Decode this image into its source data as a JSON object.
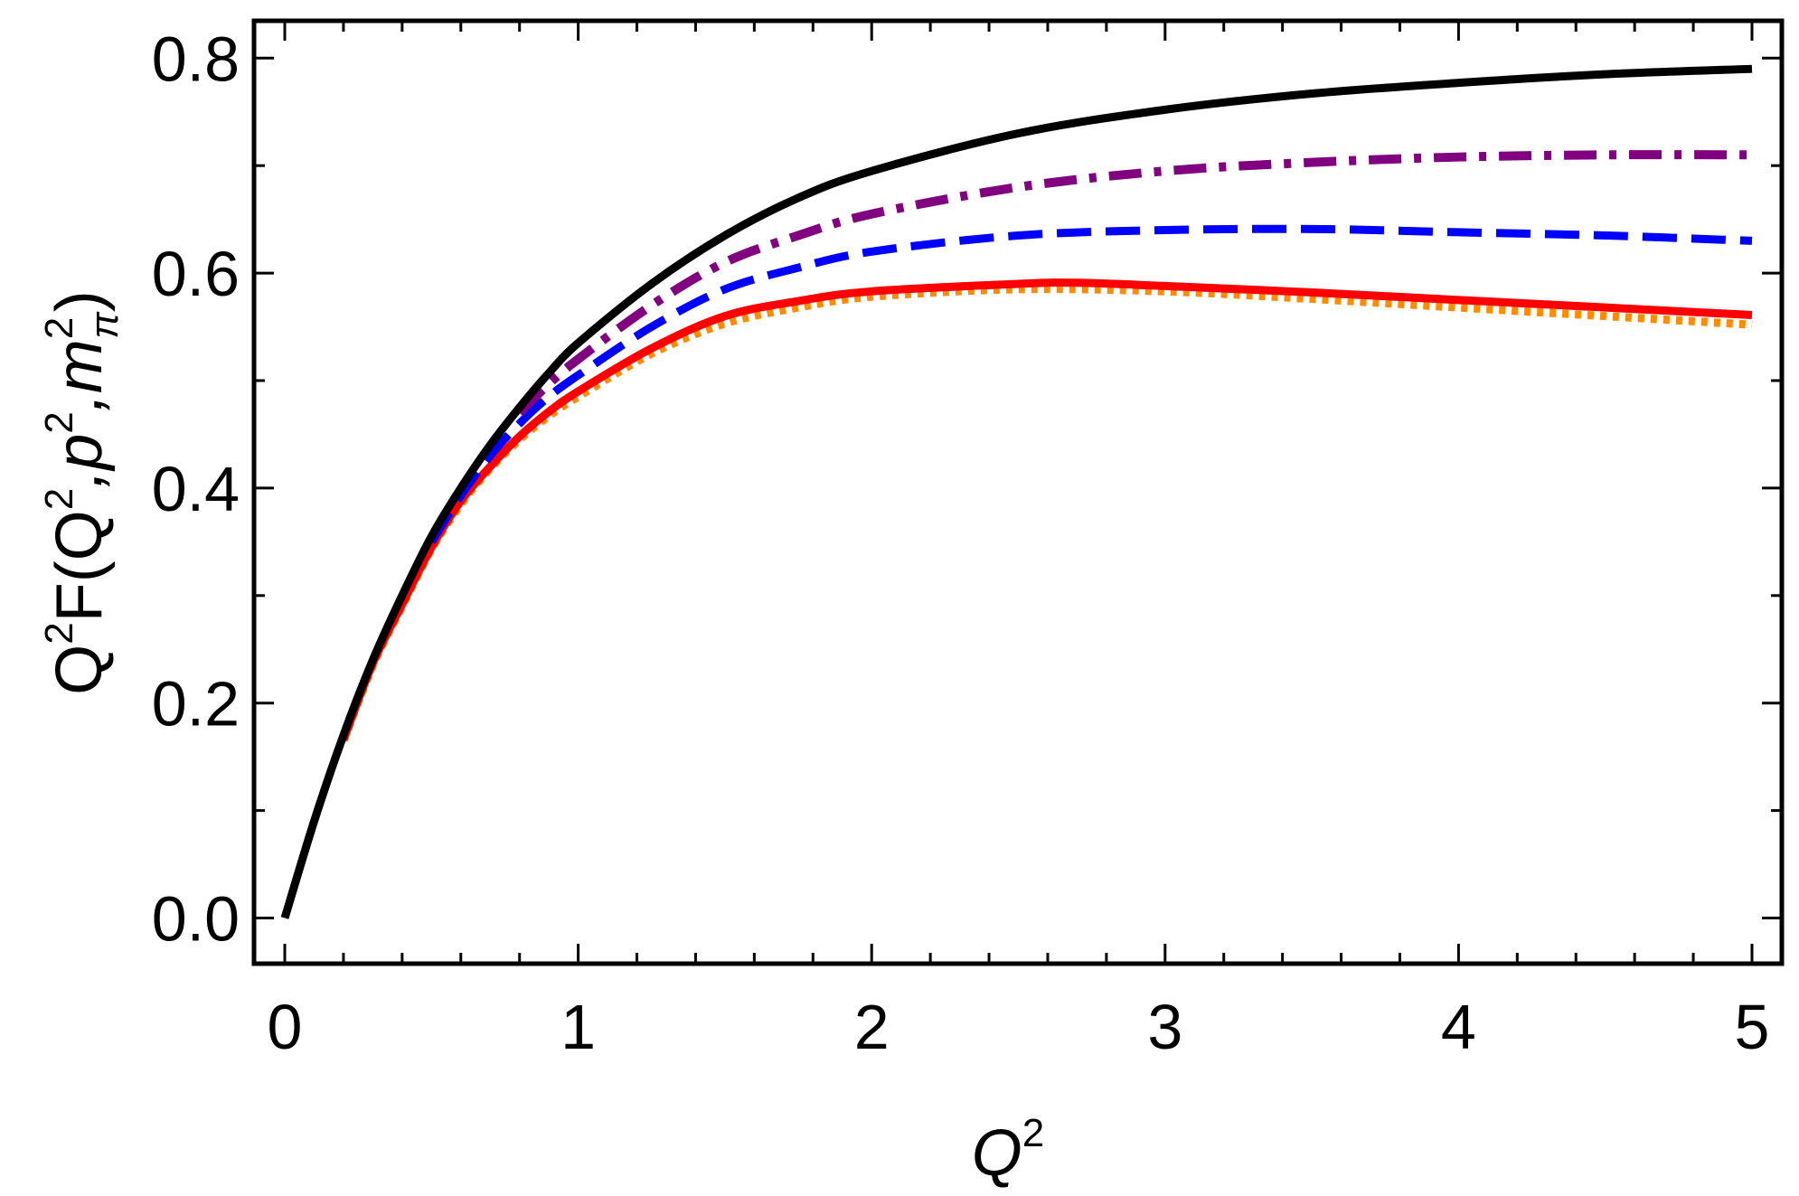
{
  "chart_data": {
    "type": "line",
    "title": "",
    "xlabel": {
      "base": "Q",
      "sup": "2"
    },
    "ylabel": {
      "p1": "Q",
      "s1": "2",
      "p2": "F(Q",
      "s2": "2",
      "p3": ",p",
      "s3": "2",
      "p4": ",m",
      "s4": "2",
      "sub4": "π",
      "p5": ")"
    },
    "xlim": [
      -0.1,
      5.1
    ],
    "ylim": [
      -0.055,
      0.83
    ],
    "xticks": [
      0,
      1,
      2,
      3,
      4,
      5
    ],
    "xtick_labels": [
      "0",
      "1",
      "2",
      "3",
      "4",
      "5"
    ],
    "yticks": [
      0.0,
      0.2,
      0.4,
      0.6,
      0.8
    ],
    "ytick_labels": [
      "0.0",
      "0.2",
      "0.4",
      "0.6",
      "0.8"
    ],
    "grid": false,
    "legend": "none",
    "series": [
      {
        "color": "#000000",
        "style": "solid",
        "x": [
          0,
          0.1,
          0.2,
          0.3,
          0.4,
          0.5,
          0.6,
          0.7,
          0.8,
          0.9,
          1,
          1.25,
          1.5,
          1.75,
          2,
          2.5,
          3,
          3.5,
          4,
          4.5,
          5
        ],
        "y": [
          0,
          0.09,
          0.17,
          0.24,
          0.3,
          0.355,
          0.4,
          0.44,
          0.475,
          0.507,
          0.535,
          0.59,
          0.635,
          0.67,
          0.695,
          0.73,
          0.752,
          0.767,
          0.777,
          0.785,
          0.79
        ]
      },
      {
        "color": "#800080",
        "style": "dashdot",
        "x": [
          0.8,
          0.9,
          1,
          1.25,
          1.5,
          1.75,
          2,
          2.5,
          3,
          3.5,
          4,
          4.5,
          5
        ],
        "y": [
          0.47,
          0.497,
          0.52,
          0.57,
          0.61,
          0.635,
          0.655,
          0.68,
          0.695,
          0.703,
          0.708,
          0.71,
          0.71
        ]
      },
      {
        "color": "#0000ff",
        "style": "dashed",
        "x": [
          0.5,
          0.6,
          0.7,
          0.8,
          0.9,
          1,
          1.25,
          1.5,
          1.75,
          2,
          2.5,
          3,
          3.5,
          4,
          4.5,
          5
        ],
        "y": [
          0.35,
          0.393,
          0.43,
          0.46,
          0.485,
          0.505,
          0.55,
          0.585,
          0.605,
          0.62,
          0.635,
          0.64,
          0.641,
          0.638,
          0.635,
          0.63
        ]
      },
      {
        "color": "#ff8c00",
        "style": "dotted",
        "x": [
          0.2,
          0.3,
          0.4,
          0.5,
          0.6,
          0.7,
          0.8,
          0.9,
          1,
          1.25,
          1.5,
          1.75,
          2,
          2.5,
          3,
          3.5,
          4,
          4.5,
          5
        ],
        "y": [
          0.165,
          0.235,
          0.29,
          0.343,
          0.385,
          0.418,
          0.445,
          0.467,
          0.485,
          0.525,
          0.553,
          0.568,
          0.578,
          0.585,
          0.583,
          0.576,
          0.568,
          0.56,
          0.552
        ]
      },
      {
        "color": "#ff0000",
        "style": "solid",
        "x": [
          0.2,
          0.3,
          0.4,
          0.5,
          0.6,
          0.7,
          0.8,
          0.9,
          1,
          1.25,
          1.5,
          1.75,
          2,
          2.5,
          2.7,
          3,
          3.5,
          4,
          4.5,
          5
        ],
        "y": [
          0.166,
          0.237,
          0.292,
          0.345,
          0.388,
          0.42,
          0.448,
          0.471,
          0.49,
          0.53,
          0.56,
          0.574,
          0.583,
          0.59,
          0.591,
          0.588,
          0.582,
          0.575,
          0.568,
          0.561
        ]
      }
    ]
  }
}
